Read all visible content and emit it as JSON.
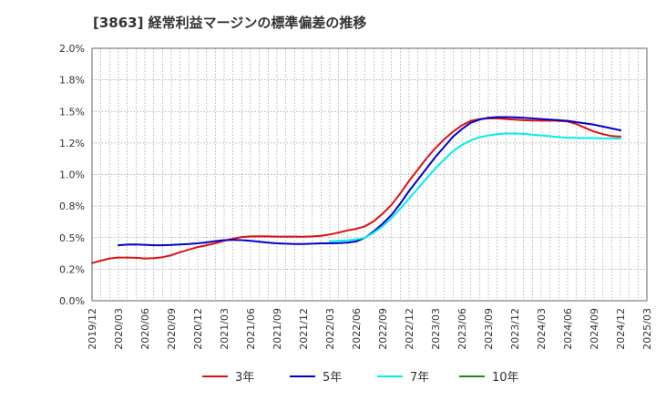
{
  "chart_data": {
    "type": "line",
    "title": "[3863]  経常利益マージンの標準偏差の推移",
    "xlabel": "",
    "ylabel": "",
    "x_ticks": [
      "2019/12",
      "2020/03",
      "2020/06",
      "2020/09",
      "2020/12",
      "2021/03",
      "2021/06",
      "2021/09",
      "2021/12",
      "2022/03",
      "2022/06",
      "2022/09",
      "2022/12",
      "2023/03",
      "2023/06",
      "2023/09",
      "2023/12",
      "2024/03",
      "2024/06",
      "2024/09",
      "2024/12",
      "2025/03"
    ],
    "y_ticks": [
      "0.0%",
      "0.2%",
      "0.5%",
      "0.8%",
      "1.0%",
      "1.2%",
      "1.5%",
      "1.8%",
      "2.0%"
    ],
    "ylim": [
      0,
      2.0
    ],
    "grid": true,
    "legend_position": "bottom",
    "series": [
      {
        "name": "3年",
        "color": "#dd1111",
        "points": [
          [
            "2019/12",
            0.298
          ],
          [
            "2020/01",
            0.318
          ],
          [
            "2020/02",
            0.335
          ],
          [
            "2020/03",
            0.342
          ],
          [
            "2020/04",
            0.342
          ],
          [
            "2020/05",
            0.34
          ],
          [
            "2020/06",
            0.335
          ],
          [
            "2020/07",
            0.338
          ],
          [
            "2020/08",
            0.345
          ],
          [
            "2020/09",
            0.36
          ],
          [
            "2020/10",
            0.385
          ],
          [
            "2020/11",
            0.405
          ],
          [
            "2020/12",
            0.425
          ],
          [
            "2021/01",
            0.44
          ],
          [
            "2021/02",
            0.455
          ],
          [
            "2021/03",
            0.475
          ],
          [
            "2021/04",
            0.492
          ],
          [
            "2021/05",
            0.505
          ],
          [
            "2021/06",
            0.51
          ],
          [
            "2021/07",
            0.511
          ],
          [
            "2021/08",
            0.51
          ],
          [
            "2021/09",
            0.508
          ],
          [
            "2021/10",
            0.508
          ],
          [
            "2021/11",
            0.508
          ],
          [
            "2021/12",
            0.507
          ],
          [
            "2022/01",
            0.51
          ],
          [
            "2022/02",
            0.515
          ],
          [
            "2022/03",
            0.525
          ],
          [
            "2022/04",
            0.54
          ],
          [
            "2022/05",
            0.557
          ],
          [
            "2022/06",
            0.57
          ],
          [
            "2022/07",
            0.59
          ],
          [
            "2022/08",
            0.63
          ],
          [
            "2022/09",
            0.69
          ],
          [
            "2022/10",
            0.76
          ],
          [
            "2022/11",
            0.85
          ],
          [
            "2022/12",
            0.95
          ],
          [
            "2023/01",
            1.04
          ],
          [
            "2023/02",
            1.13
          ],
          [
            "2023/03",
            1.21
          ],
          [
            "2023/04",
            1.28
          ],
          [
            "2023/05",
            1.34
          ],
          [
            "2023/06",
            1.39
          ],
          [
            "2023/07",
            1.425
          ],
          [
            "2023/08",
            1.44
          ],
          [
            "2023/09",
            1.445
          ],
          [
            "2023/10",
            1.445
          ],
          [
            "2023/11",
            1.44
          ],
          [
            "2023/12",
            1.435
          ],
          [
            "2024/01",
            1.43
          ],
          [
            "2024/02",
            1.428
          ],
          [
            "2024/03",
            1.427
          ],
          [
            "2024/04",
            1.428
          ],
          [
            "2024/05",
            1.425
          ],
          [
            "2024/06",
            1.42
          ],
          [
            "2024/07",
            1.4
          ],
          [
            "2024/08",
            1.37
          ],
          [
            "2024/09",
            1.34
          ],
          [
            "2024/10",
            1.32
          ],
          [
            "2024/11",
            1.305
          ],
          [
            "2024/12",
            1.3
          ]
        ]
      },
      {
        "name": "5年",
        "color": "#0000cc",
        "points": [
          [
            "2020/03",
            0.44
          ],
          [
            "2020/04",
            0.445
          ],
          [
            "2020/05",
            0.446
          ],
          [
            "2020/06",
            0.443
          ],
          [
            "2020/07",
            0.44
          ],
          [
            "2020/08",
            0.44
          ],
          [
            "2020/09",
            0.442
          ],
          [
            "2020/10",
            0.446
          ],
          [
            "2020/11",
            0.45
          ],
          [
            "2020/12",
            0.455
          ],
          [
            "2021/01",
            0.462
          ],
          [
            "2021/02",
            0.472
          ],
          [
            "2021/03",
            0.48
          ],
          [
            "2021/04",
            0.482
          ],
          [
            "2021/05",
            0.48
          ],
          [
            "2021/06",
            0.475
          ],
          [
            "2021/07",
            0.467
          ],
          [
            "2021/08",
            0.46
          ],
          [
            "2021/09",
            0.455
          ],
          [
            "2021/10",
            0.452
          ],
          [
            "2021/11",
            0.45
          ],
          [
            "2021/12",
            0.45
          ],
          [
            "2022/01",
            0.452
          ],
          [
            "2022/02",
            0.455
          ],
          [
            "2022/03",
            0.455
          ],
          [
            "2022/04",
            0.457
          ],
          [
            "2022/05",
            0.46
          ],
          [
            "2022/06",
            0.47
          ],
          [
            "2022/07",
            0.5
          ],
          [
            "2022/08",
            0.55
          ],
          [
            "2022/09",
            0.61
          ],
          [
            "2022/10",
            0.68
          ],
          [
            "2022/11",
            0.77
          ],
          [
            "2022/12",
            0.87
          ],
          [
            "2023/01",
            0.96
          ],
          [
            "2023/02",
            1.05
          ],
          [
            "2023/03",
            1.14
          ],
          [
            "2023/04",
            1.22
          ],
          [
            "2023/05",
            1.3
          ],
          [
            "2023/06",
            1.36
          ],
          [
            "2023/07",
            1.41
          ],
          [
            "2023/08",
            1.435
          ],
          [
            "2023/09",
            1.45
          ],
          [
            "2023/10",
            1.455
          ],
          [
            "2023/11",
            1.455
          ],
          [
            "2023/12",
            1.453
          ],
          [
            "2024/01",
            1.45
          ],
          [
            "2024/02",
            1.445
          ],
          [
            "2024/03",
            1.44
          ],
          [
            "2024/04",
            1.435
          ],
          [
            "2024/05",
            1.43
          ],
          [
            "2024/06",
            1.425
          ],
          [
            "2024/07",
            1.415
          ],
          [
            "2024/08",
            1.405
          ],
          [
            "2024/09",
            1.395
          ],
          [
            "2024/10",
            1.38
          ],
          [
            "2024/11",
            1.365
          ],
          [
            "2024/12",
            1.35
          ]
        ]
      },
      {
        "name": "7年",
        "color": "#00eeee",
        "points": [
          [
            "2022/03",
            0.47
          ],
          [
            "2022/04",
            0.475
          ],
          [
            "2022/05",
            0.478
          ],
          [
            "2022/06",
            0.485
          ],
          [
            "2022/07",
            0.5
          ],
          [
            "2022/08",
            0.54
          ],
          [
            "2022/09",
            0.59
          ],
          [
            "2022/10",
            0.655
          ],
          [
            "2022/11",
            0.73
          ],
          [
            "2022/12",
            0.81
          ],
          [
            "2023/01",
            0.89
          ],
          [
            "2023/02",
            0.97
          ],
          [
            "2023/03",
            1.05
          ],
          [
            "2023/04",
            1.12
          ],
          [
            "2023/05",
            1.185
          ],
          [
            "2023/06",
            1.235
          ],
          [
            "2023/07",
            1.27
          ],
          [
            "2023/08",
            1.295
          ],
          [
            "2023/09",
            1.31
          ],
          [
            "2023/10",
            1.32
          ],
          [
            "2023/11",
            1.325
          ],
          [
            "2023/12",
            1.325
          ],
          [
            "2024/01",
            1.322
          ],
          [
            "2024/02",
            1.316
          ],
          [
            "2024/03",
            1.31
          ],
          [
            "2024/04",
            1.303
          ],
          [
            "2024/05",
            1.297
          ],
          [
            "2024/06",
            1.292
          ],
          [
            "2024/07",
            1.29
          ],
          [
            "2024/08",
            1.289
          ],
          [
            "2024/09",
            1.288
          ],
          [
            "2024/10",
            1.287
          ],
          [
            "2024/11",
            1.286
          ],
          [
            "2024/12",
            1.285
          ]
        ]
      },
      {
        "name": "10年",
        "color": "#228822",
        "points": []
      }
    ]
  }
}
